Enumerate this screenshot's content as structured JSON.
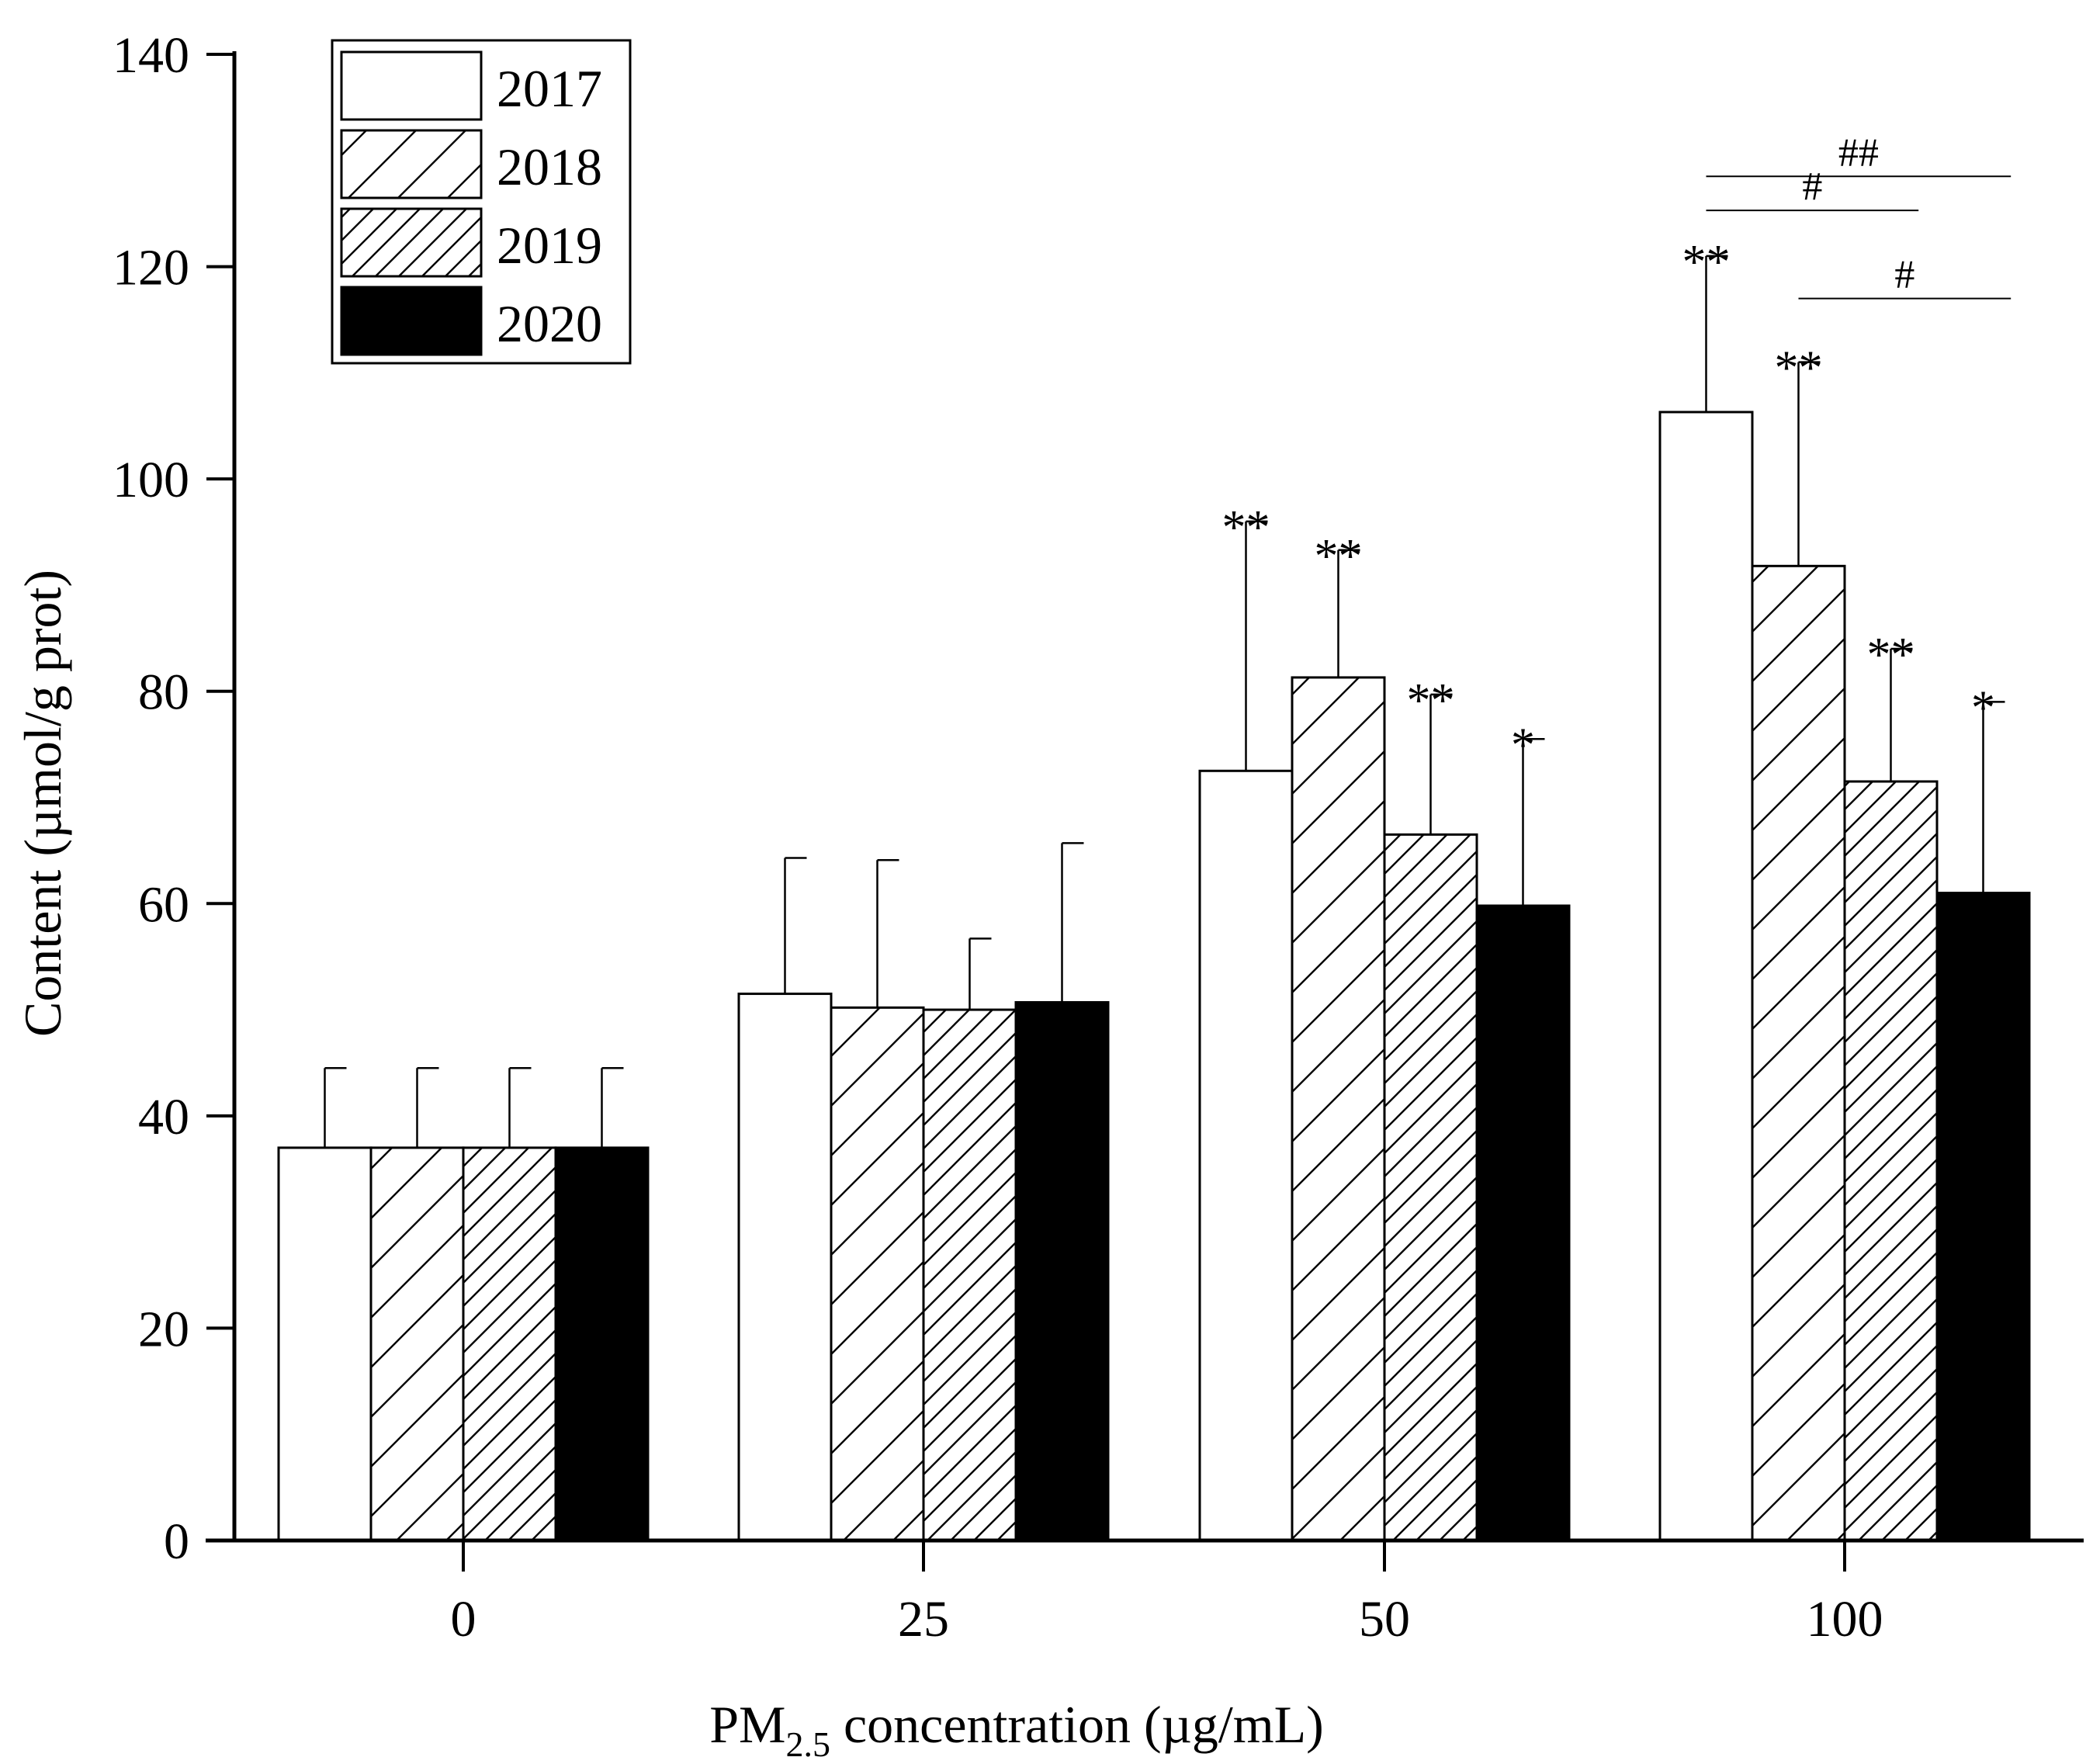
{
  "chart_data": {
    "type": "bar",
    "title": "",
    "xlabel": {
      "main": "PM",
      "sub": "2.5",
      "rest": " concentration (µg/mL)"
    },
    "ylabel": "Content (µmol/g prot)",
    "ylim": [
      0,
      140
    ],
    "yticks": [
      0,
      20,
      40,
      60,
      80,
      100,
      120,
      140
    ],
    "categories": [
      "0",
      "25",
      "50",
      "100"
    ],
    "legend_position": "top-left",
    "series": [
      {
        "name": "2017",
        "pattern": "white",
        "values": [
          37,
          51.5,
          72.5,
          106.3
        ],
        "errors": [
          7.5,
          12.8,
          23.5,
          14.7
        ],
        "labels": [
          "",
          "",
          "**",
          "**"
        ]
      },
      {
        "name": "2018",
        "pattern": "hatch-sparse",
        "values": [
          37,
          50.2,
          81.3,
          91.8
        ],
        "errors": [
          7.5,
          13.9,
          12.0,
          19.2
        ],
        "labels": [
          "",
          "",
          "**",
          "**"
        ]
      },
      {
        "name": "2019",
        "pattern": "hatch-dense",
        "values": [
          37,
          50,
          66.5,
          71.5
        ],
        "errors": [
          7.5,
          6.7,
          13.2,
          12.5
        ],
        "labels": [
          "",
          "",
          "**",
          "**"
        ]
      },
      {
        "name": "2020",
        "pattern": "black",
        "values": [
          37,
          50.7,
          59.8,
          61
        ],
        "errors": [
          7.5,
          15.0,
          15.7,
          18.0
        ],
        "labels": [
          "",
          "",
          "*",
          "*"
        ]
      }
    ],
    "comparisons": [
      {
        "category": "100",
        "from_series": 0,
        "to_series": 3,
        "y": 128.5,
        "label": "##"
      },
      {
        "category": "100",
        "from_series": 0,
        "to_series": 2,
        "y": 125.3,
        "label": "#"
      },
      {
        "category": "100",
        "from_series": 1,
        "to_series": 3,
        "y": 117.0,
        "label": "#"
      }
    ],
    "colors": {
      "axis": "#000000",
      "fill_white": "#ffffff",
      "fill_black": "#000000",
      "hatch": "#000000"
    }
  }
}
